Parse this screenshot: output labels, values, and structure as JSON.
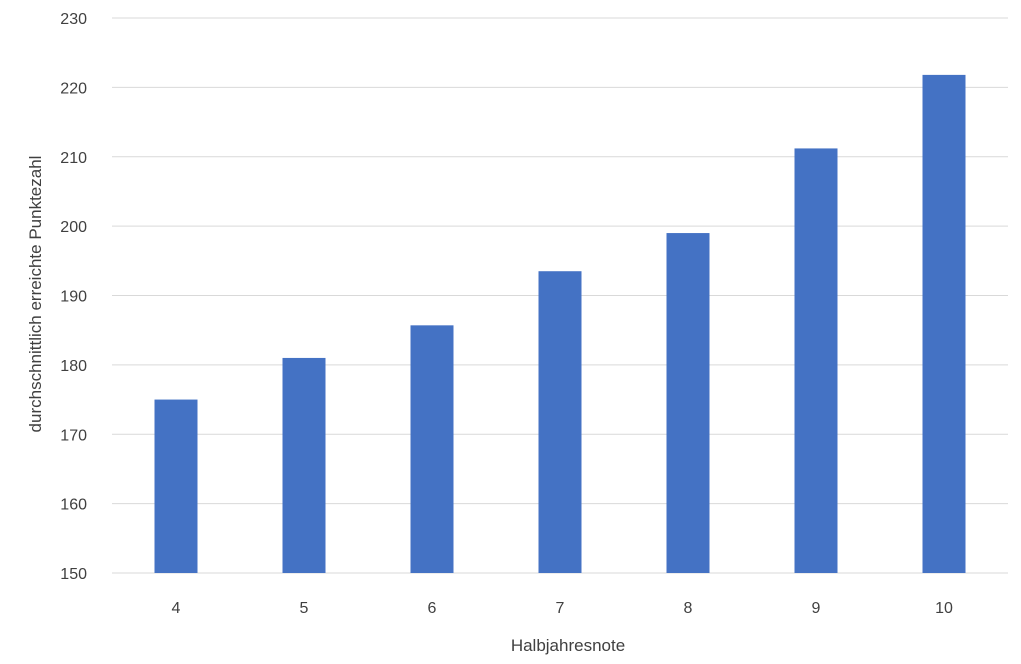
{
  "chart_data": {
    "type": "bar",
    "title": "",
    "xlabel": "Halbjahresnote",
    "ylabel": "durchschnittlich erreichte Punktezahl",
    "categories": [
      "4",
      "5",
      "6",
      "7",
      "8",
      "9",
      "10"
    ],
    "series": [
      {
        "values": [
          175,
          181,
          185.7,
          193.5,
          199,
          211.2,
          221.8
        ]
      }
    ],
    "ylim": [
      150,
      230
    ],
    "yticks": [
      150,
      160,
      170,
      180,
      190,
      200,
      210,
      220,
      230
    ],
    "grid": true,
    "legend": "none",
    "colors": {
      "bar": "#4472C4",
      "grid": "#D9D9D9",
      "text": "#404040"
    }
  }
}
